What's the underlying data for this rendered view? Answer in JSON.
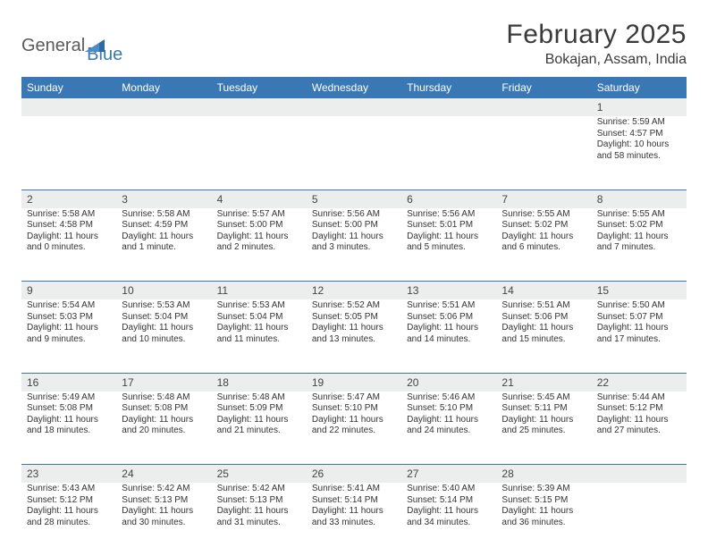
{
  "logo": {
    "word1": "General",
    "word2": "Blue"
  },
  "title": "February 2025",
  "location": "Bokajan, Assam, India",
  "colors": {
    "header_bg": "#3a78b5",
    "header_text": "#ffffff",
    "daynum_bg": "#eceded",
    "cell_border": "#3a78b5",
    "body_text": "#333333",
    "title_text": "#3a3a3a",
    "logo_gray": "#5a5a5a",
    "logo_blue": "#3a78b5"
  },
  "typography": {
    "title_fontsize": 30,
    "location_fontsize": 16,
    "dayheader_fontsize": 12,
    "daynum_fontsize": 12,
    "cell_fontsize": 10
  },
  "day_headers": [
    "Sunday",
    "Monday",
    "Tuesday",
    "Wednesday",
    "Thursday",
    "Friday",
    "Saturday"
  ],
  "weeks": [
    {
      "nums": [
        "",
        "",
        "",
        "",
        "",
        "",
        "1"
      ],
      "cells": [
        null,
        null,
        null,
        null,
        null,
        null,
        {
          "sunrise": "Sunrise: 5:59 AM",
          "sunset": "Sunset: 4:57 PM",
          "day1": "Daylight: 10 hours",
          "day2": "and 58 minutes."
        }
      ]
    },
    {
      "nums": [
        "2",
        "3",
        "4",
        "5",
        "6",
        "7",
        "8"
      ],
      "cells": [
        {
          "sunrise": "Sunrise: 5:58 AM",
          "sunset": "Sunset: 4:58 PM",
          "day1": "Daylight: 11 hours",
          "day2": "and 0 minutes."
        },
        {
          "sunrise": "Sunrise: 5:58 AM",
          "sunset": "Sunset: 4:59 PM",
          "day1": "Daylight: 11 hours",
          "day2": "and 1 minute."
        },
        {
          "sunrise": "Sunrise: 5:57 AM",
          "sunset": "Sunset: 5:00 PM",
          "day1": "Daylight: 11 hours",
          "day2": "and 2 minutes."
        },
        {
          "sunrise": "Sunrise: 5:56 AM",
          "sunset": "Sunset: 5:00 PM",
          "day1": "Daylight: 11 hours",
          "day2": "and 3 minutes."
        },
        {
          "sunrise": "Sunrise: 5:56 AM",
          "sunset": "Sunset: 5:01 PM",
          "day1": "Daylight: 11 hours",
          "day2": "and 5 minutes."
        },
        {
          "sunrise": "Sunrise: 5:55 AM",
          "sunset": "Sunset: 5:02 PM",
          "day1": "Daylight: 11 hours",
          "day2": "and 6 minutes."
        },
        {
          "sunrise": "Sunrise: 5:55 AM",
          "sunset": "Sunset: 5:02 PM",
          "day1": "Daylight: 11 hours",
          "day2": "and 7 minutes."
        }
      ]
    },
    {
      "nums": [
        "9",
        "10",
        "11",
        "12",
        "13",
        "14",
        "15"
      ],
      "cells": [
        {
          "sunrise": "Sunrise: 5:54 AM",
          "sunset": "Sunset: 5:03 PM",
          "day1": "Daylight: 11 hours",
          "day2": "and 9 minutes."
        },
        {
          "sunrise": "Sunrise: 5:53 AM",
          "sunset": "Sunset: 5:04 PM",
          "day1": "Daylight: 11 hours",
          "day2": "and 10 minutes."
        },
        {
          "sunrise": "Sunrise: 5:53 AM",
          "sunset": "Sunset: 5:04 PM",
          "day1": "Daylight: 11 hours",
          "day2": "and 11 minutes."
        },
        {
          "sunrise": "Sunrise: 5:52 AM",
          "sunset": "Sunset: 5:05 PM",
          "day1": "Daylight: 11 hours",
          "day2": "and 13 minutes."
        },
        {
          "sunrise": "Sunrise: 5:51 AM",
          "sunset": "Sunset: 5:06 PM",
          "day1": "Daylight: 11 hours",
          "day2": "and 14 minutes."
        },
        {
          "sunrise": "Sunrise: 5:51 AM",
          "sunset": "Sunset: 5:06 PM",
          "day1": "Daylight: 11 hours",
          "day2": "and 15 minutes."
        },
        {
          "sunrise": "Sunrise: 5:50 AM",
          "sunset": "Sunset: 5:07 PM",
          "day1": "Daylight: 11 hours",
          "day2": "and 17 minutes."
        }
      ]
    },
    {
      "nums": [
        "16",
        "17",
        "18",
        "19",
        "20",
        "21",
        "22"
      ],
      "cells": [
        {
          "sunrise": "Sunrise: 5:49 AM",
          "sunset": "Sunset: 5:08 PM",
          "day1": "Daylight: 11 hours",
          "day2": "and 18 minutes."
        },
        {
          "sunrise": "Sunrise: 5:48 AM",
          "sunset": "Sunset: 5:08 PM",
          "day1": "Daylight: 11 hours",
          "day2": "and 20 minutes."
        },
        {
          "sunrise": "Sunrise: 5:48 AM",
          "sunset": "Sunset: 5:09 PM",
          "day1": "Daylight: 11 hours",
          "day2": "and 21 minutes."
        },
        {
          "sunrise": "Sunrise: 5:47 AM",
          "sunset": "Sunset: 5:10 PM",
          "day1": "Daylight: 11 hours",
          "day2": "and 22 minutes."
        },
        {
          "sunrise": "Sunrise: 5:46 AM",
          "sunset": "Sunset: 5:10 PM",
          "day1": "Daylight: 11 hours",
          "day2": "and 24 minutes."
        },
        {
          "sunrise": "Sunrise: 5:45 AM",
          "sunset": "Sunset: 5:11 PM",
          "day1": "Daylight: 11 hours",
          "day2": "and 25 minutes."
        },
        {
          "sunrise": "Sunrise: 5:44 AM",
          "sunset": "Sunset: 5:12 PM",
          "day1": "Daylight: 11 hours",
          "day2": "and 27 minutes."
        }
      ]
    },
    {
      "nums": [
        "23",
        "24",
        "25",
        "26",
        "27",
        "28",
        ""
      ],
      "cells": [
        {
          "sunrise": "Sunrise: 5:43 AM",
          "sunset": "Sunset: 5:12 PM",
          "day1": "Daylight: 11 hours",
          "day2": "and 28 minutes."
        },
        {
          "sunrise": "Sunrise: 5:42 AM",
          "sunset": "Sunset: 5:13 PM",
          "day1": "Daylight: 11 hours",
          "day2": "and 30 minutes."
        },
        {
          "sunrise": "Sunrise: 5:42 AM",
          "sunset": "Sunset: 5:13 PM",
          "day1": "Daylight: 11 hours",
          "day2": "and 31 minutes."
        },
        {
          "sunrise": "Sunrise: 5:41 AM",
          "sunset": "Sunset: 5:14 PM",
          "day1": "Daylight: 11 hours",
          "day2": "and 33 minutes."
        },
        {
          "sunrise": "Sunrise: 5:40 AM",
          "sunset": "Sunset: 5:14 PM",
          "day1": "Daylight: 11 hours",
          "day2": "and 34 minutes."
        },
        {
          "sunrise": "Sunrise: 5:39 AM",
          "sunset": "Sunset: 5:15 PM",
          "day1": "Daylight: 11 hours",
          "day2": "and 36 minutes."
        },
        null
      ]
    }
  ]
}
